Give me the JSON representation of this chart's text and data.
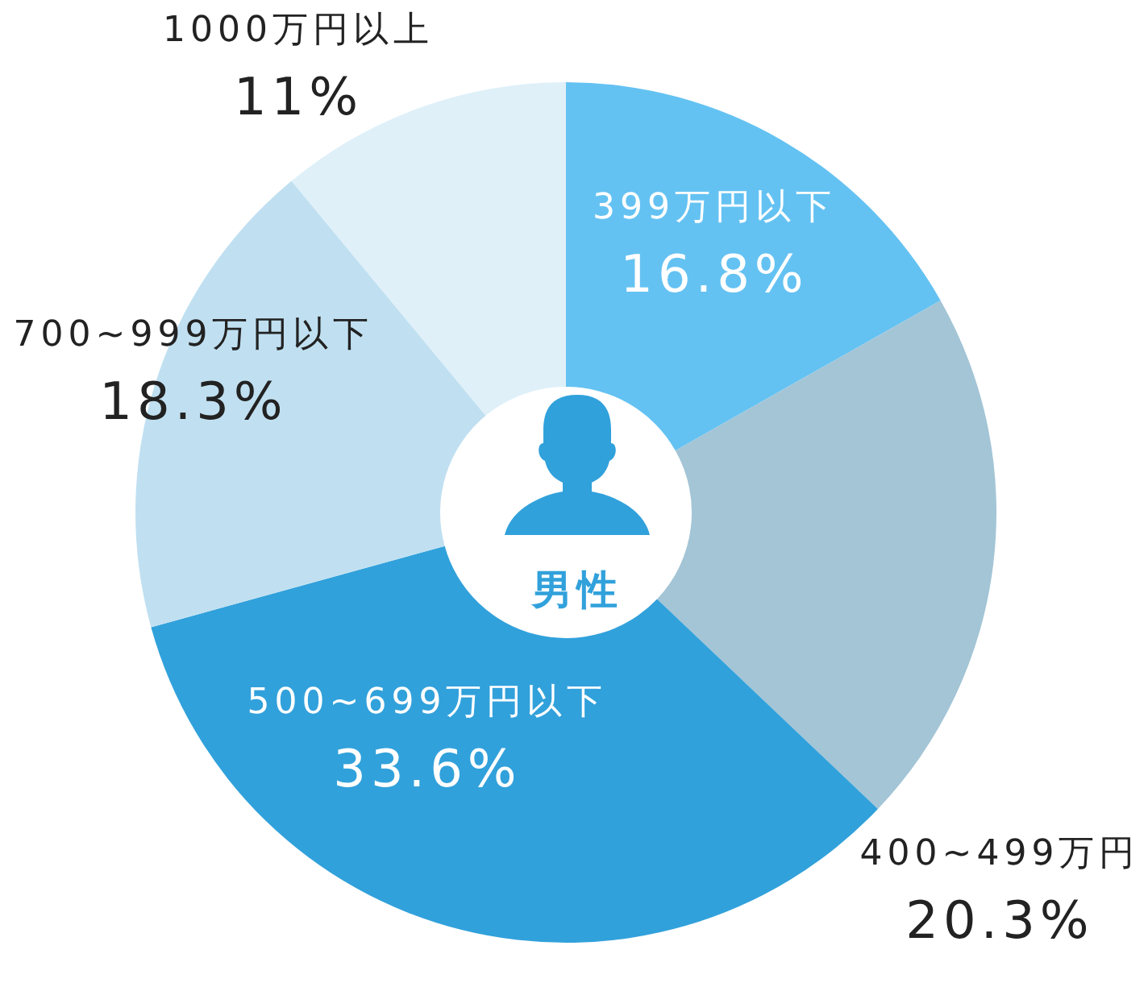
{
  "chart_data": {
    "type": "donut",
    "title": "男性",
    "categories": [
      "399万円以下",
      "400~499万円",
      "500~699万円以下",
      "700~999万円以下",
      "1000万円以上"
    ],
    "values": [
      16.8,
      20.3,
      33.6,
      18.3,
      11
    ],
    "colors": [
      "#64c2f2",
      "#a3c5d6",
      "#31a1db",
      "#c0e0f1",
      "#dff0f9"
    ],
    "value_labels": [
      "16.8%",
      "20.3%",
      "33.6%",
      "18.3%",
      "11%"
    ]
  }
}
